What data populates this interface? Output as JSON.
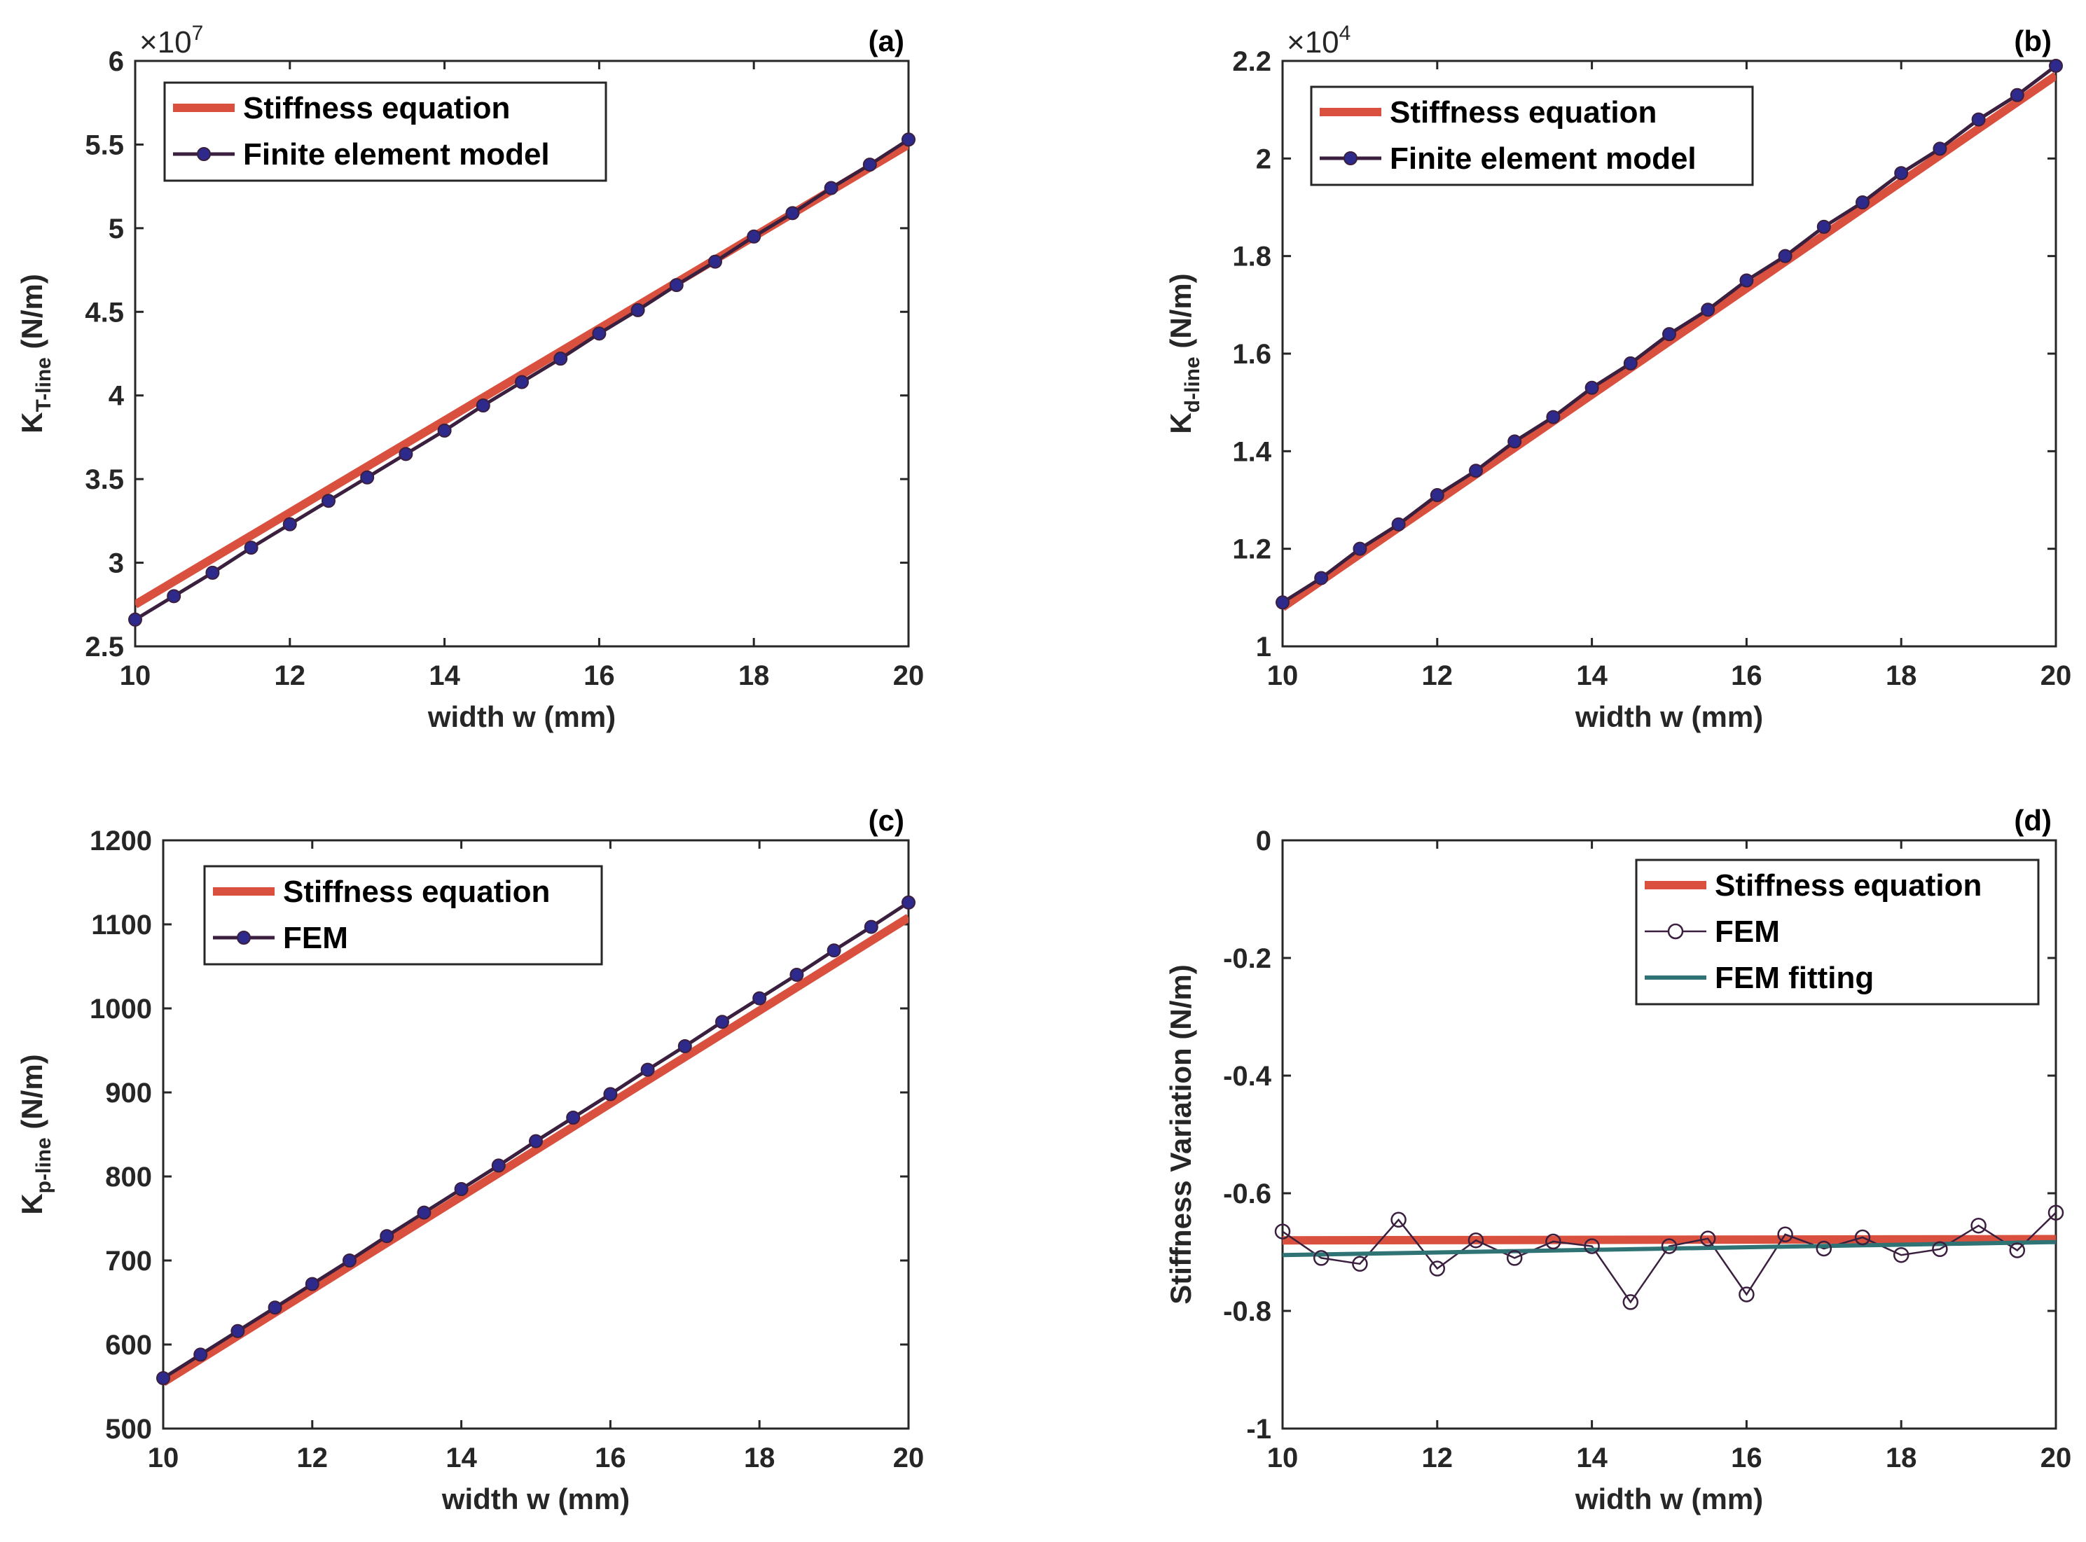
{
  "chart_data": [
    {
      "type": "line",
      "panel_label": "(a)",
      "ylabel_main": "K",
      "ylabel_sub": "T-line",
      "ylabel_unit": " (N/m)",
      "xlabel": "width w (mm)",
      "multiplier_base": "×10",
      "multiplier_exp": "7",
      "xlim": [
        10,
        20
      ],
      "ylim": [
        2.5,
        6
      ],
      "xticks": [
        10,
        12,
        14,
        16,
        18,
        20
      ],
      "xtick_labels": [
        "10",
        "12",
        "14",
        "16",
        "18",
        "20"
      ],
      "yticks": [
        2.5,
        3,
        3.5,
        4,
        4.5,
        5,
        5.5,
        6
      ],
      "ytick_labels": [
        "2.5",
        "3",
        "3.5",
        "4",
        "4.5",
        "5",
        "5.5",
        "6"
      ],
      "legend": [
        "Stiffness equation",
        "Finite element model"
      ],
      "series": [
        {
          "name": "Stiffness equation",
          "style": "thick",
          "color": "#d9503f",
          "x": [
            10,
            20
          ],
          "y": [
            2.75,
            5.5
          ]
        },
        {
          "name": "Finite element model",
          "style": "line-dots",
          "color": "#3b1f3f",
          "marker_color": "#2e2a8c",
          "x": [
            10,
            10.5,
            11,
            11.5,
            12,
            12.5,
            13,
            13.5,
            14,
            14.5,
            15,
            15.5,
            16,
            16.5,
            17,
            17.5,
            18,
            18.5,
            19,
            19.5,
            20
          ],
          "y": [
            2.66,
            2.8,
            2.94,
            3.09,
            3.23,
            3.37,
            3.51,
            3.65,
            3.79,
            3.94,
            4.08,
            4.22,
            4.37,
            4.51,
            4.66,
            4.8,
            4.95,
            5.09,
            5.24,
            5.38,
            5.53
          ]
        }
      ]
    },
    {
      "type": "line",
      "panel_label": "(b)",
      "ylabel_main": "K",
      "ylabel_sub": "d-line",
      "ylabel_unit": " (N/m)",
      "xlabel": "width w (mm)",
      "multiplier_base": "×10",
      "multiplier_exp": "4",
      "xlim": [
        10,
        20
      ],
      "ylim": [
        1,
        2.2
      ],
      "xticks": [
        10,
        12,
        14,
        16,
        18,
        20
      ],
      "xtick_labels": [
        "10",
        "12",
        "14",
        "16",
        "18",
        "20"
      ],
      "yticks": [
        1,
        1.2,
        1.4,
        1.6,
        1.8,
        2,
        2.2
      ],
      "ytick_labels": [
        "1",
        "1.2",
        "1.4",
        "1.6",
        "1.8",
        "2",
        "2.2"
      ],
      "legend": [
        "Stiffness equation",
        "Finite element model"
      ],
      "series": [
        {
          "name": "Stiffness equation",
          "style": "thick",
          "color": "#d9503f",
          "x": [
            10,
            20
          ],
          "y": [
            1.08,
            2.17
          ]
        },
        {
          "name": "Finite element model",
          "style": "line-dots",
          "color": "#3b1f3f",
          "marker_color": "#2e2a8c",
          "x": [
            10,
            10.5,
            11,
            11.5,
            12,
            12.5,
            13,
            13.5,
            14,
            14.5,
            15,
            15.5,
            16,
            16.5,
            17,
            17.5,
            18,
            18.5,
            19,
            19.5,
            20
          ],
          "y": [
            1.09,
            1.14,
            1.2,
            1.25,
            1.31,
            1.36,
            1.42,
            1.47,
            1.53,
            1.58,
            1.64,
            1.69,
            1.75,
            1.8,
            1.86,
            1.91,
            1.97,
            2.02,
            2.08,
            2.13,
            2.19
          ]
        }
      ]
    },
    {
      "type": "line",
      "panel_label": "(c)",
      "ylabel_main": "K",
      "ylabel_sub": "p-line",
      "ylabel_unit": " (N/m)",
      "xlabel": "width w (mm)",
      "multiplier_base": "",
      "multiplier_exp": "",
      "xlim": [
        10,
        20
      ],
      "ylim": [
        500,
        1200
      ],
      "xticks": [
        10,
        12,
        14,
        16,
        18,
        20
      ],
      "xtick_labels": [
        "10",
        "12",
        "14",
        "16",
        "18",
        "20"
      ],
      "yticks": [
        500,
        600,
        700,
        800,
        900,
        1000,
        1100,
        1200
      ],
      "ytick_labels": [
        "500",
        "600",
        "700",
        "800",
        "900",
        "1000",
        "1100",
        "1200"
      ],
      "legend": [
        "Stiffness equation",
        "FEM"
      ],
      "series": [
        {
          "name": "Stiffness equation",
          "style": "thick",
          "color": "#d9503f",
          "x": [
            10,
            20
          ],
          "y": [
            555,
            1108
          ]
        },
        {
          "name": "FEM",
          "style": "line-dots",
          "color": "#3b1f3f",
          "marker_color": "#2e2a8c",
          "x": [
            10,
            10.5,
            11,
            11.5,
            12,
            12.5,
            13,
            13.5,
            14,
            14.5,
            15,
            15.5,
            16,
            16.5,
            17,
            17.5,
            18,
            18.5,
            19,
            19.5,
            20
          ],
          "y": [
            560,
            588,
            616,
            644,
            672,
            700,
            729,
            757,
            785,
            813,
            842,
            870,
            898,
            927,
            955,
            984,
            1012,
            1040,
            1069,
            1097,
            1126
          ]
        }
      ]
    },
    {
      "type": "line",
      "panel_label": "(d)",
      "ylabel_main": "Stiffness Variation",
      "ylabel_sub": "",
      "ylabel_unit": " (N/m)",
      "xlabel": "width w (mm)",
      "multiplier_base": "",
      "multiplier_exp": "",
      "xlim": [
        10,
        20
      ],
      "ylim": [
        -1,
        0
      ],
      "xticks": [
        10,
        12,
        14,
        16,
        18,
        20
      ],
      "xtick_labels": [
        "10",
        "12",
        "14",
        "16",
        "18",
        "20"
      ],
      "yticks": [
        -1,
        -0.8,
        -0.6,
        -0.4,
        -0.2,
        0
      ],
      "ytick_labels": [
        "-1",
        "-0.8",
        "-0.6",
        "-0.4",
        "-0.2",
        "0"
      ],
      "legend": [
        "Stiffness equation",
        "FEM",
        "FEM fitting"
      ],
      "series": [
        {
          "name": "Stiffness equation",
          "style": "thick",
          "color": "#d9503f",
          "x": [
            10,
            20
          ],
          "y": [
            -0.68,
            -0.678
          ]
        },
        {
          "name": "FEM",
          "style": "line-circles",
          "color": "#3b1f3f",
          "x": [
            10,
            10.5,
            11,
            11.5,
            12,
            12.5,
            13,
            13.5,
            14,
            14.5,
            15,
            15.5,
            16,
            16.5,
            17,
            17.5,
            18,
            18.5,
            19,
            19.5,
            20
          ],
          "y": [
            -0.665,
            -0.71,
            -0.72,
            -0.645,
            -0.728,
            -0.68,
            -0.71,
            -0.682,
            -0.69,
            -0.785,
            -0.69,
            -0.677,
            -0.772,
            -0.67,
            -0.694,
            -0.675,
            -0.705,
            -0.695,
            -0.655,
            -0.697,
            -0.633
          ]
        },
        {
          "name": "FEM fitting",
          "style": "thin",
          "color": "#2f7374",
          "x": [
            10,
            20
          ],
          "y": [
            -0.705,
            -0.683
          ]
        }
      ]
    }
  ]
}
